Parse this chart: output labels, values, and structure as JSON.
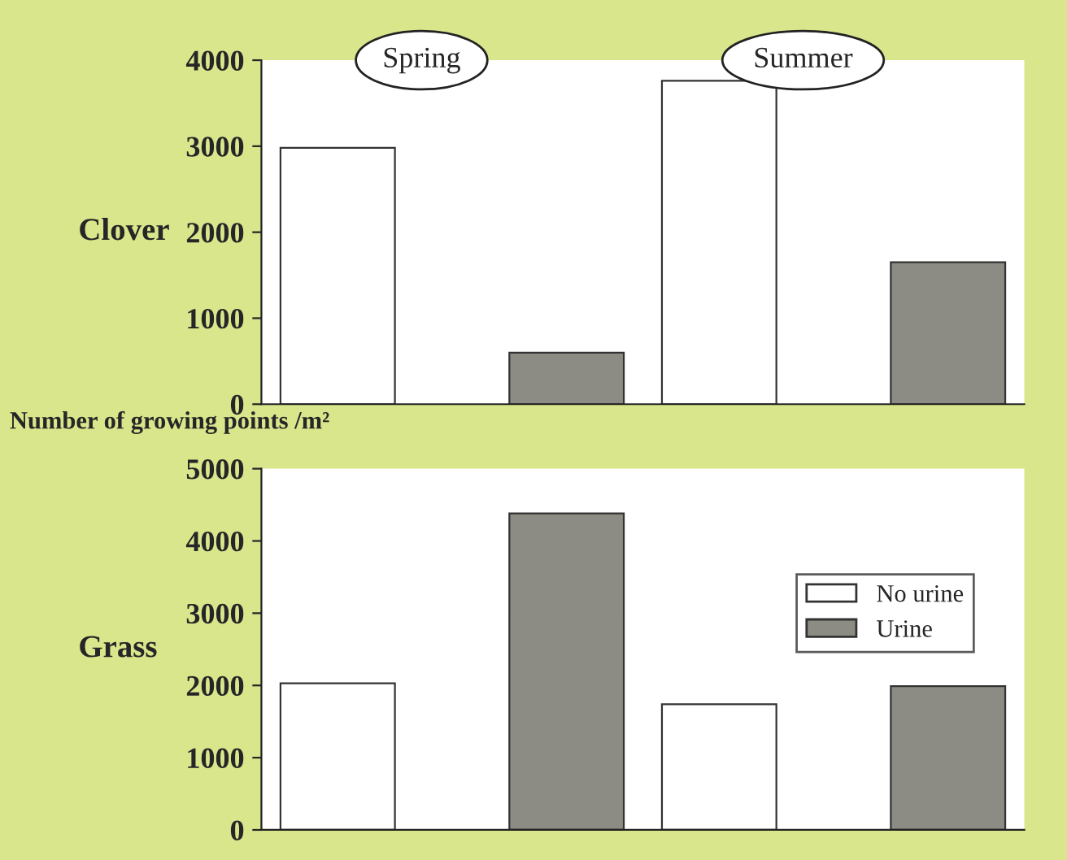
{
  "chart_data": [
    {
      "type": "bar",
      "title": "Clover",
      "ylabel": "Number of growing points /m²",
      "categories": [
        "Spring",
        "Summer"
      ],
      "series": [
        {
          "color": "#ffffff",
          "values": [
            2980,
            3760
          ]
        },
        {
          "color": "#8c8c84",
          "values": [
            600,
            1650
          ]
        }
      ],
      "ylim": [
        0,
        4000
      ],
      "yticks": [
        0,
        1000,
        2000,
        3000,
        4000
      ],
      "grid": false,
      "legend": false
    },
    {
      "type": "bar",
      "title": "Grass",
      "categories": [
        null,
        null
      ],
      "series": [
        {
          "name": "No urine",
          "color": "#ffffff",
          "values": [
            2030,
            1740
          ]
        },
        {
          "name": "Urine",
          "color": "#8c8c84",
          "values": [
            4380,
            1990
          ]
        }
      ],
      "ylim": [
        0,
        5000
      ],
      "yticks": [
        0,
        1000,
        2000,
        3000,
        4000,
        5000
      ],
      "grid": false,
      "legend": "right"
    }
  ]
}
